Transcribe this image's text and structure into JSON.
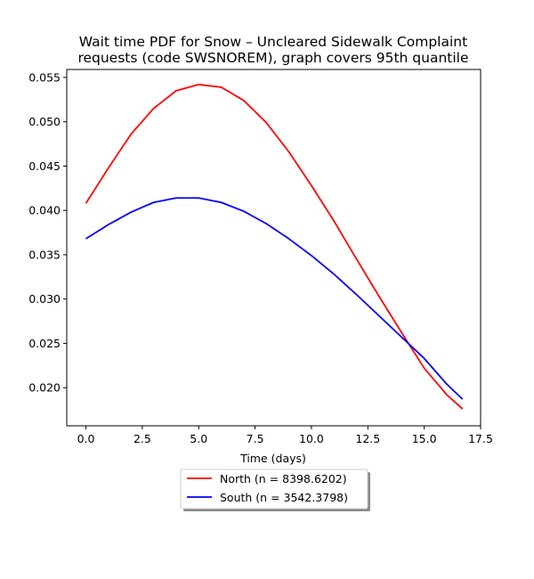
{
  "chart_data": {
    "type": "line",
    "title_lines": [
      "Wait time PDF for Snow – Uncleared Sidewalk Complaint",
      "requests (code SWSNOREM), graph covers 95th quantile"
    ],
    "xlabel": "Time (days)",
    "ylabel": "",
    "xlim": [
      -0.85,
      17.5
    ],
    "ylim": [
      0.0157,
      0.0559
    ],
    "xticks": [
      0.0,
      2.5,
      5.0,
      7.5,
      10.0,
      12.5,
      15.0,
      17.5
    ],
    "xtick_labels": [
      "0.0",
      "2.5",
      "5.0",
      "7.5",
      "10.0",
      "12.5",
      "15.0",
      "17.5"
    ],
    "yticks": [
      0.02,
      0.025,
      0.03,
      0.035,
      0.04,
      0.045,
      0.05,
      0.055
    ],
    "ytick_labels": [
      "0.020",
      "0.025",
      "0.030",
      "0.035",
      "0.040",
      "0.045",
      "0.050",
      "0.055"
    ],
    "grid": false,
    "legend_position": "below-center",
    "series": [
      {
        "name": "North (n = 8398.6202)",
        "color": "#ff0000",
        "x": [
          0.0,
          1.0,
          2.0,
          3.0,
          4.0,
          5.0,
          6.0,
          7.0,
          8.0,
          9.0,
          10.0,
          11.0,
          12.0,
          13.0,
          14.0,
          15.0,
          16.0,
          16.7
        ],
        "y": [
          0.0408,
          0.0448,
          0.0486,
          0.0515,
          0.0535,
          0.0542,
          0.0539,
          0.0524,
          0.0499,
          0.0466,
          0.0428,
          0.0388,
          0.0345,
          0.0303,
          0.0262,
          0.0222,
          0.0192,
          0.0176
        ]
      },
      {
        "name": "South (n = 3542.3798)",
        "color": "#0000ff",
        "x": [
          0.0,
          1.0,
          2.0,
          3.0,
          4.0,
          5.0,
          6.0,
          7.0,
          8.0,
          9.0,
          10.0,
          11.0,
          12.0,
          13.0,
          14.0,
          15.0,
          16.0,
          16.7
        ],
        "y": [
          0.0368,
          0.0384,
          0.0398,
          0.0409,
          0.0414,
          0.0414,
          0.0409,
          0.0399,
          0.0385,
          0.0368,
          0.0349,
          0.0328,
          0.0305,
          0.0281,
          0.0257,
          0.0233,
          0.0204,
          0.0187
        ]
      }
    ]
  }
}
